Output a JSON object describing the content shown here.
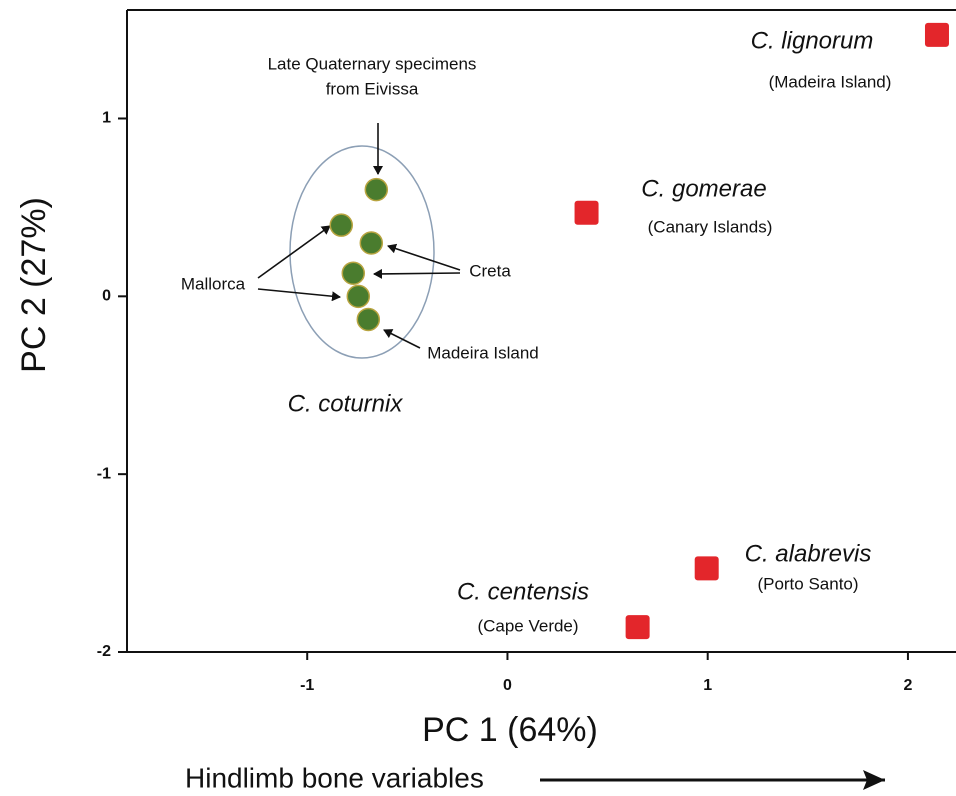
{
  "chart_data": {
    "type": "scatter",
    "subtitle": "Hindlimb bone variables",
    "x_label": "PC 1 (64%)",
    "y_label": "PC 2 (27%)",
    "xlim": [
      -1.9,
      2.24
    ],
    "ylim": [
      -2,
      1.61
    ],
    "xticks": [
      -1,
      0,
      1,
      2
    ],
    "yticks": [
      -2,
      -1,
      0,
      1
    ],
    "annotations": [
      "Late Quaternary specimens",
      "from Eivissa",
      "Mallorca",
      "Creta",
      "Madeira Island"
    ],
    "series": [
      {
        "name": "C. coturnix",
        "color": "#4a7c2e",
        "x": [
          -0.655,
          -0.83,
          -0.68,
          -0.77,
          -0.745,
          -0.695
        ],
        "y": [
          0.6,
          0.4,
          0.3,
          0.13,
          0,
          -0.13
        ]
      },
      {
        "name": "C. lignorum",
        "location": "(Madeira Island)",
        "color": "#e3262b",
        "x": [
          2.145
        ],
        "y": [
          1.47
        ]
      },
      {
        "name": "C. gomerae",
        "location": "(Canary Islands)",
        "color": "#e3262b",
        "x": [
          0.395
        ],
        "y": [
          0.47
        ]
      },
      {
        "name": "C. alabrevis",
        "location": "(Porto Santo)",
        "color": "#e3262b",
        "x": [
          0.995
        ],
        "y": [
          -1.53
        ]
      },
      {
        "name": "C. centensis",
        "location": "(Cape Verde)",
        "color": "#e3262b",
        "x": [
          0.65
        ],
        "y": [
          -1.86
        ]
      }
    ]
  }
}
